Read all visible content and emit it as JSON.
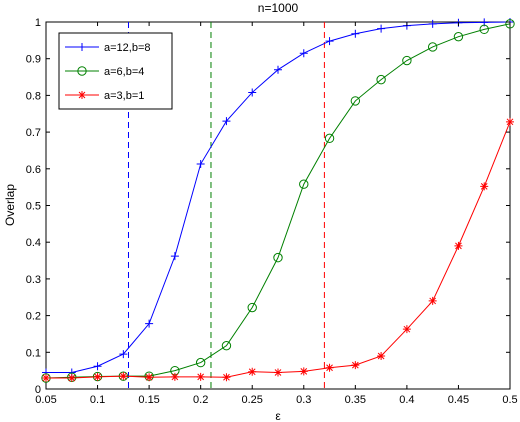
{
  "chart_data": {
    "type": "line",
    "title": "n=1000",
    "xlabel": "ε",
    "ylabel": "Overlap",
    "xlim": [
      0.05,
      0.5
    ],
    "ylim": [
      0,
      1
    ],
    "x_ticks": [
      "0.05",
      "0.1",
      "0.15",
      "0.2",
      "0.25",
      "0.3",
      "0.35",
      "0.4",
      "0.45",
      "0.5"
    ],
    "y_ticks": [
      "0",
      "0.1",
      "0.2",
      "0.3",
      "0.4",
      "0.5",
      "0.6",
      "0.7",
      "0.8",
      "0.9",
      "1"
    ],
    "grid": false,
    "legend_position": "top-left",
    "x": [
      0.05,
      0.075,
      0.1,
      0.125,
      0.15,
      0.175,
      0.2,
      0.225,
      0.25,
      0.275,
      0.3,
      0.325,
      0.35,
      0.375,
      0.4,
      0.425,
      0.45,
      0.475,
      0.5
    ],
    "series": [
      {
        "name": "a=12,b=8",
        "color": "#0000ff",
        "marker": "plus",
        "values": [
          0.045,
          0.045,
          0.062,
          0.095,
          0.178,
          0.362,
          0.613,
          0.73,
          0.808,
          0.87,
          0.915,
          0.948,
          0.968,
          0.982,
          0.99,
          0.995,
          0.998,
          0.999,
          1.0
        ],
        "threshold": 0.13
      },
      {
        "name": "a=6,b=4",
        "color": "#008000",
        "marker": "circle",
        "values": [
          0.03,
          0.032,
          0.034,
          0.035,
          0.035,
          0.05,
          0.072,
          0.118,
          0.222,
          0.358,
          0.558,
          0.683,
          0.785,
          0.843,
          0.895,
          0.932,
          0.96,
          0.98,
          0.995
        ],
        "threshold": 0.21
      },
      {
        "name": "a=3,b=1",
        "color": "#ff0000",
        "marker": "star",
        "values": [
          0.03,
          0.03,
          0.033,
          0.035,
          0.032,
          0.033,
          0.033,
          0.032,
          0.047,
          0.045,
          0.048,
          0.058,
          0.065,
          0.09,
          0.163,
          0.24,
          0.39,
          0.552,
          0.728
        ],
        "threshold": 0.32
      }
    ]
  }
}
